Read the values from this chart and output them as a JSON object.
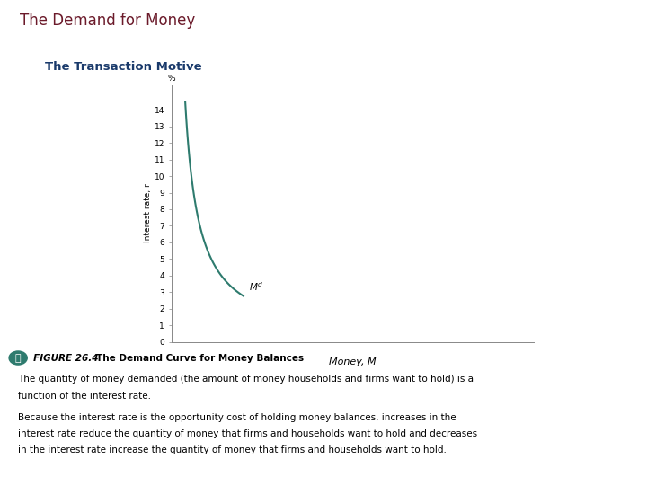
{
  "title": "The Demand for Money",
  "subtitle": "The Transaction Motive",
  "title_color": "#6b1a2a",
  "subtitle_color": "#1a3a6b",
  "background_color": "#ffffff",
  "curve_color": "#2e7b6e",
  "ylabel": "Interest rate, r",
  "xlabel": "Money, M",
  "yticks": [
    0,
    1,
    2,
    3,
    4,
    5,
    6,
    7,
    8,
    9,
    10,
    11,
    12,
    13,
    14
  ],
  "ylim": [
    0,
    15.5
  ],
  "y_percent_label": "%",
  "caption_circle_color": "#2e7b6e",
  "caption_number": "26.4",
  "caption_bold": "The Demand Curve for Money Balances",
  "caption_line1a": "The quantity of money demanded (the amount of money households and firms want to hold) is a",
  "caption_line1b": "function of the interest rate.",
  "caption_line2a": "Because the interest rate is the opportunity cost of holding money balances, increases in the",
  "caption_line2b": "interest rate reduce the quantity of money that firms and households want to hold and decreases",
  "caption_line2c": "in the interest rate increase the quantity of money that firms and households want to hold."
}
